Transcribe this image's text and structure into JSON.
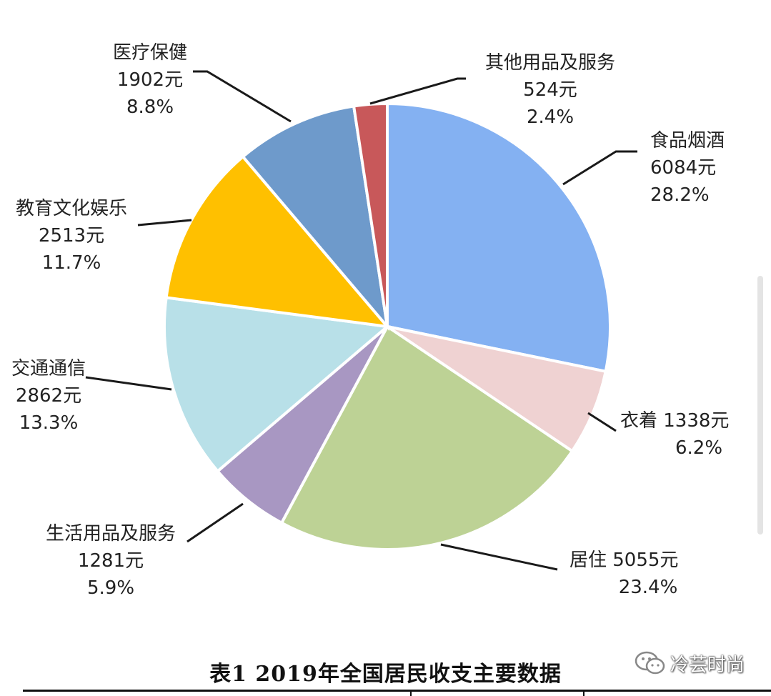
{
  "chart_data": {
    "type": "pie",
    "slices": [
      {
        "label": "食品烟酒",
        "amount": "6084元",
        "percent": "28.2%",
        "value": 28.2,
        "color": "#84B1F2",
        "label_layout": "stack"
      },
      {
        "label": "衣着",
        "amount": "1338元",
        "percent": "6.2%",
        "value": 6.2,
        "color": "#EFD2D2",
        "label_layout": "inline"
      },
      {
        "label": "居住",
        "amount": "5055元",
        "percent": "23.4%",
        "value": 23.4,
        "color": "#BDD295",
        "label_layout": "inline"
      },
      {
        "label": "生活用品及服务",
        "amount": "1281元",
        "percent": "5.9%",
        "value": 5.9,
        "color": "#A897C2",
        "label_layout": "stack"
      },
      {
        "label": "交通通信",
        "amount": "2862元",
        "percent": "13.3%",
        "value": 13.3,
        "color": "#B8E0E8",
        "label_layout": "stack"
      },
      {
        "label": "教育文化娱乐",
        "amount": "2513元",
        "percent": "11.7%",
        "value": 11.7,
        "color": "#FFC000",
        "label_layout": "stack"
      },
      {
        "label": "医疗保健",
        "amount": "1902元",
        "percent": "8.8%",
        "value": 8.8,
        "color": "#6E9ACB",
        "label_layout": "stack"
      },
      {
        "label": "其他用品及服务",
        "amount": "524元",
        "percent": "2.4%",
        "value": 2.4,
        "color": "#C8585A",
        "label_layout": "stack"
      }
    ]
  },
  "caption": "表1   2019年全国居民收支主要数据",
  "watermark": {
    "icon": "wechat-icon",
    "text": "冷芸时尚"
  }
}
